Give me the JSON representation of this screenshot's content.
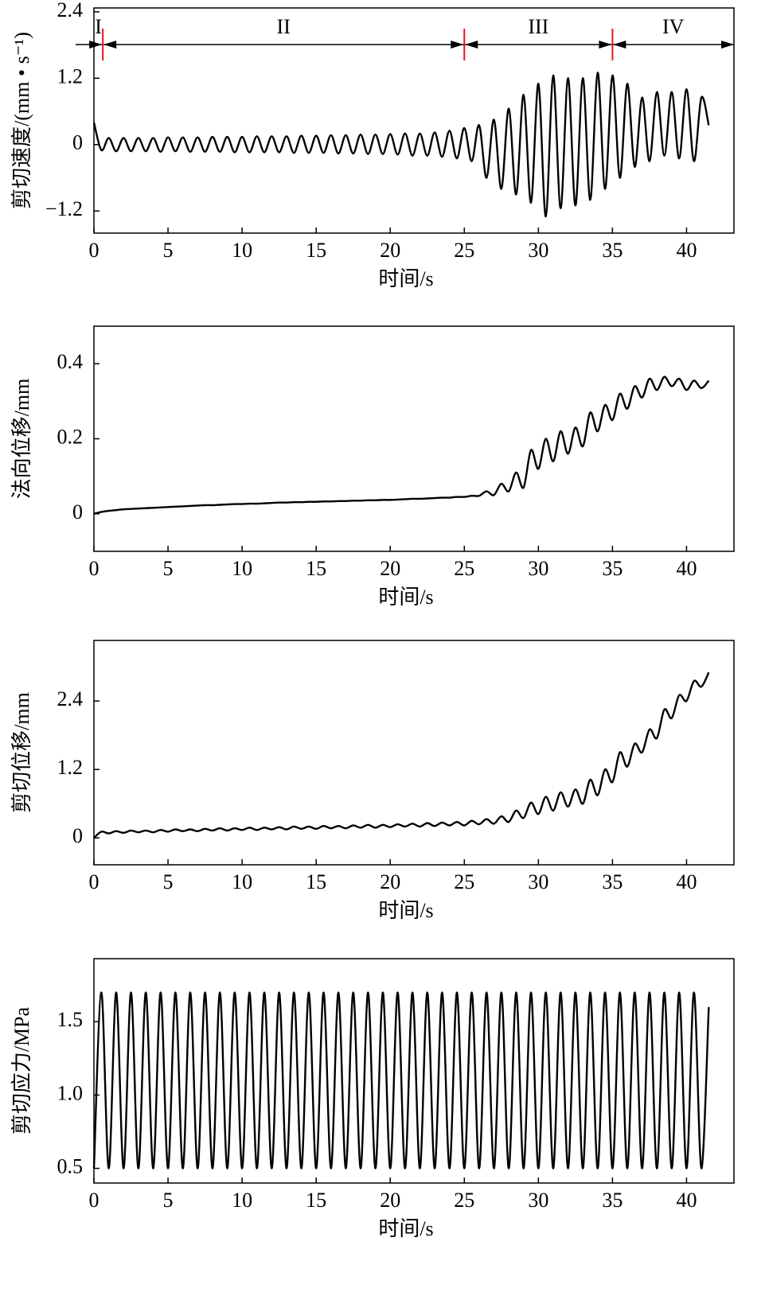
{
  "chart_data": [
    {
      "type": "line",
      "ylabel": "剪切速度/(mm • s⁻¹)",
      "xlabel": "时间/s",
      "color": "#000000",
      "xlim": [
        0,
        43.2
      ],
      "xticks": [
        0,
        5,
        10,
        15,
        20,
        25,
        30,
        35,
        40
      ],
      "ylim": [
        -1.6,
        2.47
      ],
      "yticks": [
        {
          "value": -1.2,
          "label": "−1.2"
        },
        0,
        1.2,
        2.4
      ],
      "phase_labels": [
        "I",
        "II",
        "III",
        "IV"
      ],
      "phase_boundaries": [
        0.6,
        25,
        35
      ],
      "phase_color": "#e8141c",
      "x": [
        0,
        0.5,
        1,
        1.5,
        2,
        2.5,
        3,
        3.5,
        4,
        4.5,
        5,
        5.5,
        6,
        6.5,
        7,
        7.5,
        8,
        8.5,
        9,
        9.5,
        10,
        10.5,
        11,
        11.5,
        12,
        12.5,
        13,
        13.5,
        14,
        14.5,
        15,
        15.5,
        16,
        16.5,
        17,
        17.5,
        18,
        18.5,
        19,
        19.5,
        20,
        20.5,
        21,
        21.5,
        22,
        22.5,
        23,
        23.5,
        24,
        24.5,
        25,
        25.5,
        26,
        26.5,
        27,
        27.5,
        28,
        28.5,
        29,
        29.5,
        30,
        30.5,
        31,
        31.5,
        32,
        32.5,
        33,
        33.5,
        34,
        34.5,
        35,
        35.5,
        36,
        36.5,
        37,
        37.5,
        38,
        38.5,
        39,
        39.5,
        40,
        40.5,
        41,
        41.5
      ],
      "values": [
        0.4,
        -0.1,
        0.12,
        -0.12,
        0.12,
        -0.12,
        0.12,
        -0.12,
        0.12,
        -0.13,
        0.13,
        -0.12,
        0.13,
        -0.13,
        0.13,
        -0.13,
        0.14,
        -0.13,
        0.14,
        -0.14,
        0.14,
        -0.14,
        0.15,
        -0.14,
        0.15,
        -0.14,
        0.15,
        -0.15,
        0.16,
        -0.15,
        0.16,
        -0.15,
        0.17,
        -0.16,
        0.17,
        -0.16,
        0.18,
        -0.17,
        0.18,
        -0.17,
        0.19,
        -0.18,
        0.2,
        -0.2,
        0.2,
        -0.2,
        0.22,
        -0.22,
        0.25,
        -0.25,
        0.3,
        -0.3,
        0.35,
        -0.6,
        0.45,
        -0.8,
        0.65,
        -0.9,
        0.9,
        -1.05,
        1.1,
        -1.3,
        1.25,
        -1.15,
        1.2,
        -1.1,
        1.2,
        -1.0,
        1.3,
        -0.8,
        1.25,
        -0.6,
        1.1,
        -0.4,
        0.85,
        -0.3,
        0.95,
        -0.2,
        0.95,
        -0.25,
        1.0,
        -0.3,
        0.85,
        0.35
      ]
    },
    {
      "type": "line",
      "ylabel": "法向位移/mm",
      "xlabel": "时间/s",
      "color": "#000000",
      "xlim": [
        0,
        43.2
      ],
      "xticks": [
        0,
        5,
        10,
        15,
        20,
        25,
        30,
        35,
        40
      ],
      "ylim": [
        -0.1,
        0.5
      ],
      "yticks": [
        0,
        0.2,
        0.4
      ],
      "x": [
        0,
        0.5,
        1,
        1.5,
        2,
        2.5,
        3,
        3.5,
        4,
        4.5,
        5,
        5.5,
        6,
        6.5,
        7,
        7.5,
        8,
        8.5,
        9,
        9.5,
        10,
        10.5,
        11,
        11.5,
        12,
        12.5,
        13,
        13.5,
        14,
        14.5,
        15,
        15.5,
        16,
        16.5,
        17,
        17.5,
        18,
        18.5,
        19,
        19.5,
        20,
        20.5,
        21,
        21.5,
        22,
        22.5,
        23,
        23.5,
        24,
        24.5,
        25,
        25.5,
        26,
        26.5,
        27,
        27.5,
        28,
        28.5,
        29,
        29.5,
        30,
        30.5,
        31,
        31.5,
        32,
        32.5,
        33,
        33.5,
        34,
        34.5,
        35,
        35.5,
        36,
        36.5,
        37,
        37.5,
        38,
        38.5,
        39,
        39.5,
        40,
        40.5,
        41,
        41.5
      ],
      "values": [
        0,
        0.005,
        0.008,
        0.01,
        0.012,
        0.013,
        0.014,
        0.015,
        0.016,
        0.017,
        0.018,
        0.019,
        0.02,
        0.021,
        0.022,
        0.023,
        0.023,
        0.024,
        0.025,
        0.026,
        0.026,
        0.027,
        0.027,
        0.028,
        0.029,
        0.03,
        0.03,
        0.031,
        0.031,
        0.032,
        0.032,
        0.033,
        0.033,
        0.034,
        0.034,
        0.035,
        0.035,
        0.036,
        0.036,
        0.037,
        0.037,
        0.038,
        0.039,
        0.04,
        0.04,
        0.041,
        0.042,
        0.043,
        0.043,
        0.045,
        0.045,
        0.048,
        0.048,
        0.06,
        0.05,
        0.08,
        0.06,
        0.11,
        0.07,
        0.17,
        0.12,
        0.2,
        0.14,
        0.22,
        0.16,
        0.23,
        0.18,
        0.27,
        0.22,
        0.29,
        0.25,
        0.32,
        0.28,
        0.34,
        0.31,
        0.36,
        0.33,
        0.365,
        0.34,
        0.36,
        0.33,
        0.355,
        0.335,
        0.355
      ]
    },
    {
      "type": "line",
      "ylabel": "剪切位移/mm",
      "xlabel": "时间/s",
      "color": "#000000",
      "xlim": [
        0,
        43.2
      ],
      "xticks": [
        0,
        5,
        10,
        15,
        20,
        25,
        30,
        35,
        40
      ],
      "ylim": [
        -0.47,
        3.46
      ],
      "yticks": [
        0,
        1.2,
        2.4
      ],
      "x": [
        0,
        0.5,
        1,
        1.5,
        2,
        2.5,
        3,
        3.5,
        4,
        4.5,
        5,
        5.5,
        6,
        6.5,
        7,
        7.5,
        8,
        8.5,
        9,
        9.5,
        10,
        10.5,
        11,
        11.5,
        12,
        12.5,
        13,
        13.5,
        14,
        14.5,
        15,
        15.5,
        16,
        16.5,
        17,
        17.5,
        18,
        18.5,
        19,
        19.5,
        20,
        20.5,
        21,
        21.5,
        22,
        22.5,
        23,
        23.5,
        24,
        24.5,
        25,
        25.5,
        26,
        26.5,
        27,
        27.5,
        28,
        28.5,
        29,
        29.5,
        30,
        30.5,
        31,
        31.5,
        32,
        32.5,
        33,
        33.5,
        34,
        34.5,
        35,
        35.5,
        36,
        36.5,
        37,
        37.5,
        38,
        38.5,
        39,
        39.5,
        40,
        40.5,
        41,
        41.5
      ],
      "values": [
        0,
        0.11,
        0.08,
        0.12,
        0.09,
        0.13,
        0.1,
        0.13,
        0.1,
        0.14,
        0.11,
        0.15,
        0.12,
        0.15,
        0.12,
        0.16,
        0.13,
        0.17,
        0.13,
        0.17,
        0.14,
        0.18,
        0.14,
        0.18,
        0.15,
        0.19,
        0.15,
        0.2,
        0.16,
        0.2,
        0.16,
        0.21,
        0.17,
        0.21,
        0.17,
        0.22,
        0.18,
        0.23,
        0.18,
        0.23,
        0.19,
        0.24,
        0.2,
        0.25,
        0.2,
        0.26,
        0.21,
        0.27,
        0.22,
        0.28,
        0.22,
        0.3,
        0.24,
        0.33,
        0.25,
        0.38,
        0.28,
        0.48,
        0.35,
        0.62,
        0.42,
        0.72,
        0.48,
        0.8,
        0.55,
        0.85,
        0.6,
        1.02,
        0.75,
        1.2,
        0.98,
        1.5,
        1.25,
        1.65,
        1.5,
        1.9,
        1.75,
        2.25,
        2.1,
        2.5,
        2.4,
        2.75,
        2.65,
        2.9
      ]
    },
    {
      "type": "line",
      "ylabel": "剪切应力/MPa",
      "xlabel": "时间/s",
      "color": "#000000",
      "xlim": [
        0,
        43.2
      ],
      "xticks": [
        0,
        5,
        10,
        15,
        20,
        25,
        30,
        35,
        40
      ],
      "ylim": [
        0.4,
        1.93
      ],
      "yticks": [
        0.5,
        {
          "value": 1,
          "label": "1.0"
        },
        1.5
      ],
      "x": [
        0,
        0.5,
        1,
        1.5,
        2,
        2.5,
        3,
        3.5,
        4,
        4.5,
        5,
        5.5,
        6,
        6.5,
        7,
        7.5,
        8,
        8.5,
        9,
        9.5,
        10,
        10.5,
        11,
        11.5,
        12,
        12.5,
        13,
        13.5,
        14,
        14.5,
        15,
        15.5,
        16,
        16.5,
        17,
        17.5,
        18,
        18.5,
        19,
        19.5,
        20,
        20.5,
        21,
        21.5,
        22,
        22.5,
        23,
        23.5,
        24,
        24.5,
        25,
        25.5,
        26,
        26.5,
        27,
        27.5,
        28,
        28.5,
        29,
        29.5,
        30,
        30.5,
        31,
        31.5,
        32,
        32.5,
        33,
        33.5,
        34,
        34.5,
        35,
        35.5,
        36,
        36.5,
        37,
        37.5,
        38,
        38.5,
        39,
        39.5,
        40,
        40.5,
        41,
        41.5
      ],
      "values": [
        0.5,
        1.7,
        0.5,
        1.7,
        0.5,
        1.7,
        0.5,
        1.7,
        0.5,
        1.7,
        0.5,
        1.7,
        0.5,
        1.7,
        0.5,
        1.7,
        0.5,
        1.7,
        0.5,
        1.7,
        0.5,
        1.7,
        0.5,
        1.7,
        0.5,
        1.7,
        0.5,
        1.7,
        0.5,
        1.7,
        0.5,
        1.7,
        0.5,
        1.7,
        0.5,
        1.7,
        0.5,
        1.7,
        0.5,
        1.7,
        0.5,
        1.7,
        0.5,
        1.7,
        0.5,
        1.7,
        0.5,
        1.7,
        0.5,
        1.7,
        0.5,
        1.7,
        0.5,
        1.7,
        0.5,
        1.7,
        0.5,
        1.7,
        0.5,
        1.7,
        0.5,
        1.7,
        0.5,
        1.7,
        0.5,
        1.7,
        0.5,
        1.7,
        0.5,
        1.7,
        0.5,
        1.7,
        0.5,
        1.7,
        0.5,
        1.7,
        0.5,
        1.7,
        0.5,
        1.7,
        0.5,
        1.7,
        0.5,
        1.6
      ]
    }
  ]
}
